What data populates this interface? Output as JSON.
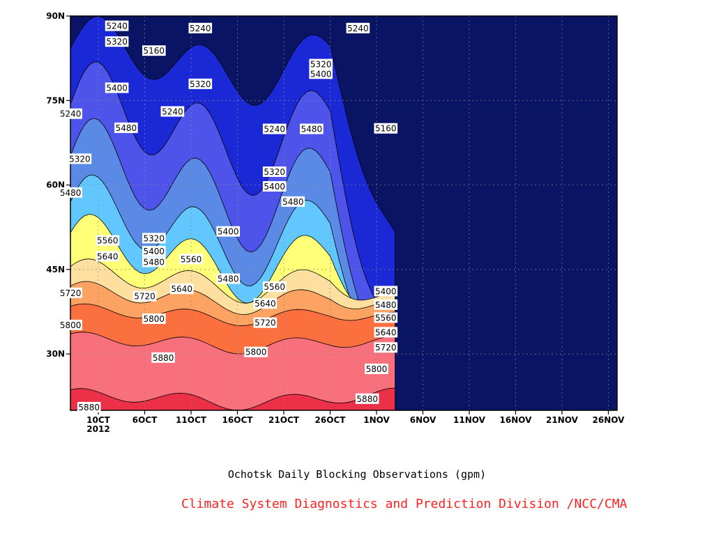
{
  "chart_data": {
    "type": "contour",
    "title": "",
    "xlabel": "Ochotsk Daily Blocking Observations (gpm)",
    "ylabel": "",
    "x_ticks": [
      "10CT",
      "6OCT",
      "11OCT",
      "16OCT",
      "21OCT",
      "26OCT",
      "1NOV",
      "6NOV",
      "11NOV",
      "16NOV",
      "21NOV",
      "26NOV"
    ],
    "x_year": "2012",
    "y_ticks": [
      "30N",
      "45N",
      "60N",
      "75N",
      "90N"
    ],
    "ylim": [
      20,
      90
    ],
    "levels": [
      5160,
      5240,
      5320,
      5400,
      5480,
      5560,
      5640,
      5720,
      5800,
      5880
    ],
    "colors": [
      "#0a1464",
      "#1a28d6",
      "#4e54ea",
      "#5a8ae6",
      "#62c6ff",
      "#ffff78",
      "#fde0a0",
      "#fca262",
      "#fc7040",
      "#f8707c",
      "#ec3048"
    ],
    "contour_labels": [
      {
        "v": "5240",
        "day": 5,
        "lat": 88.2
      },
      {
        "v": "5160",
        "day": 9,
        "lat": 83.8
      },
      {
        "v": "5320",
        "day": 5,
        "lat": 85.4
      },
      {
        "v": "5240",
        "day": 0,
        "lat": 72.6
      },
      {
        "v": "5400",
        "day": 5,
        "lat": 77.2
      },
      {
        "v": "5320",
        "day": 1,
        "lat": 64.6
      },
      {
        "v": "5480",
        "day": 6,
        "lat": 70.1
      },
      {
        "v": "5480",
        "day": 0,
        "lat": 58.6
      },
      {
        "v": "5240",
        "day": 11,
        "lat": 73.0
      },
      {
        "v": "5240",
        "day": 14,
        "lat": 87.8
      },
      {
        "v": "5320",
        "day": 14,
        "lat": 77.9
      },
      {
        "v": "5320",
        "day": 9,
        "lat": 50.5
      },
      {
        "v": "5400",
        "day": 9,
        "lat": 48.2
      },
      {
        "v": "5480",
        "day": 9,
        "lat": 46.3
      },
      {
        "v": "5560",
        "day": 4,
        "lat": 50.1
      },
      {
        "v": "5640",
        "day": 4,
        "lat": 47.3
      },
      {
        "v": "5560",
        "day": 13,
        "lat": 46.8
      },
      {
        "v": "5720",
        "day": 0,
        "lat": 40.8
      },
      {
        "v": "5720",
        "day": 8,
        "lat": 40.2
      },
      {
        "v": "5640",
        "day": 12,
        "lat": 41.5
      },
      {
        "v": "5800",
        "day": 0,
        "lat": 35.1
      },
      {
        "v": "5800",
        "day": 9,
        "lat": 36.2
      },
      {
        "v": "5880",
        "day": 10,
        "lat": 29.3
      },
      {
        "v": "5880",
        "day": 2,
        "lat": 20.5
      },
      {
        "v": "5400",
        "day": 17,
        "lat": 51.7
      },
      {
        "v": "5480",
        "day": 17,
        "lat": 43.3
      },
      {
        "v": "5240",
        "day": 22,
        "lat": 69.9
      },
      {
        "v": "5320",
        "day": 22,
        "lat": 62.3
      },
      {
        "v": "5400",
        "day": 22,
        "lat": 59.7
      },
      {
        "v": "5480",
        "day": 24,
        "lat": 57.0
      },
      {
        "v": "5560",
        "day": 22,
        "lat": 41.9
      },
      {
        "v": "5640",
        "day": 21,
        "lat": 38.9
      },
      {
        "v": "5720",
        "day": 21,
        "lat": 35.5
      },
      {
        "v": "5800",
        "day": 20,
        "lat": 30.3
      },
      {
        "v": "5320",
        "day": 27,
        "lat": 81.4
      },
      {
        "v": "5400",
        "day": 27,
        "lat": 79.7
      },
      {
        "v": "5480",
        "day": 26,
        "lat": 69.9
      },
      {
        "v": "5240",
        "day": 31,
        "lat": 87.8
      },
      {
        "v": "5160",
        "day": 34,
        "lat": 70.0
      },
      {
        "v": "5400",
        "day": 34,
        "lat": 41.1
      },
      {
        "v": "5480",
        "day": 34,
        "lat": 38.7
      },
      {
        "v": "5560",
        "day": 34,
        "lat": 36.4
      },
      {
        "v": "5640",
        "day": 34,
        "lat": 33.8
      },
      {
        "v": "5720",
        "day": 34,
        "lat": 31.1
      },
      {
        "v": "5800",
        "day": 33,
        "lat": 27.3
      },
      {
        "v": "5880",
        "day": 32,
        "lat": 22.0
      }
    ],
    "grid": true
  },
  "footer": {
    "caption": "Ochotsk Daily Blocking Observations (gpm)",
    "credit": "Climate System Diagnostics and Prediction Division /NCC/CMA",
    "credit_color": "#ff2020"
  }
}
